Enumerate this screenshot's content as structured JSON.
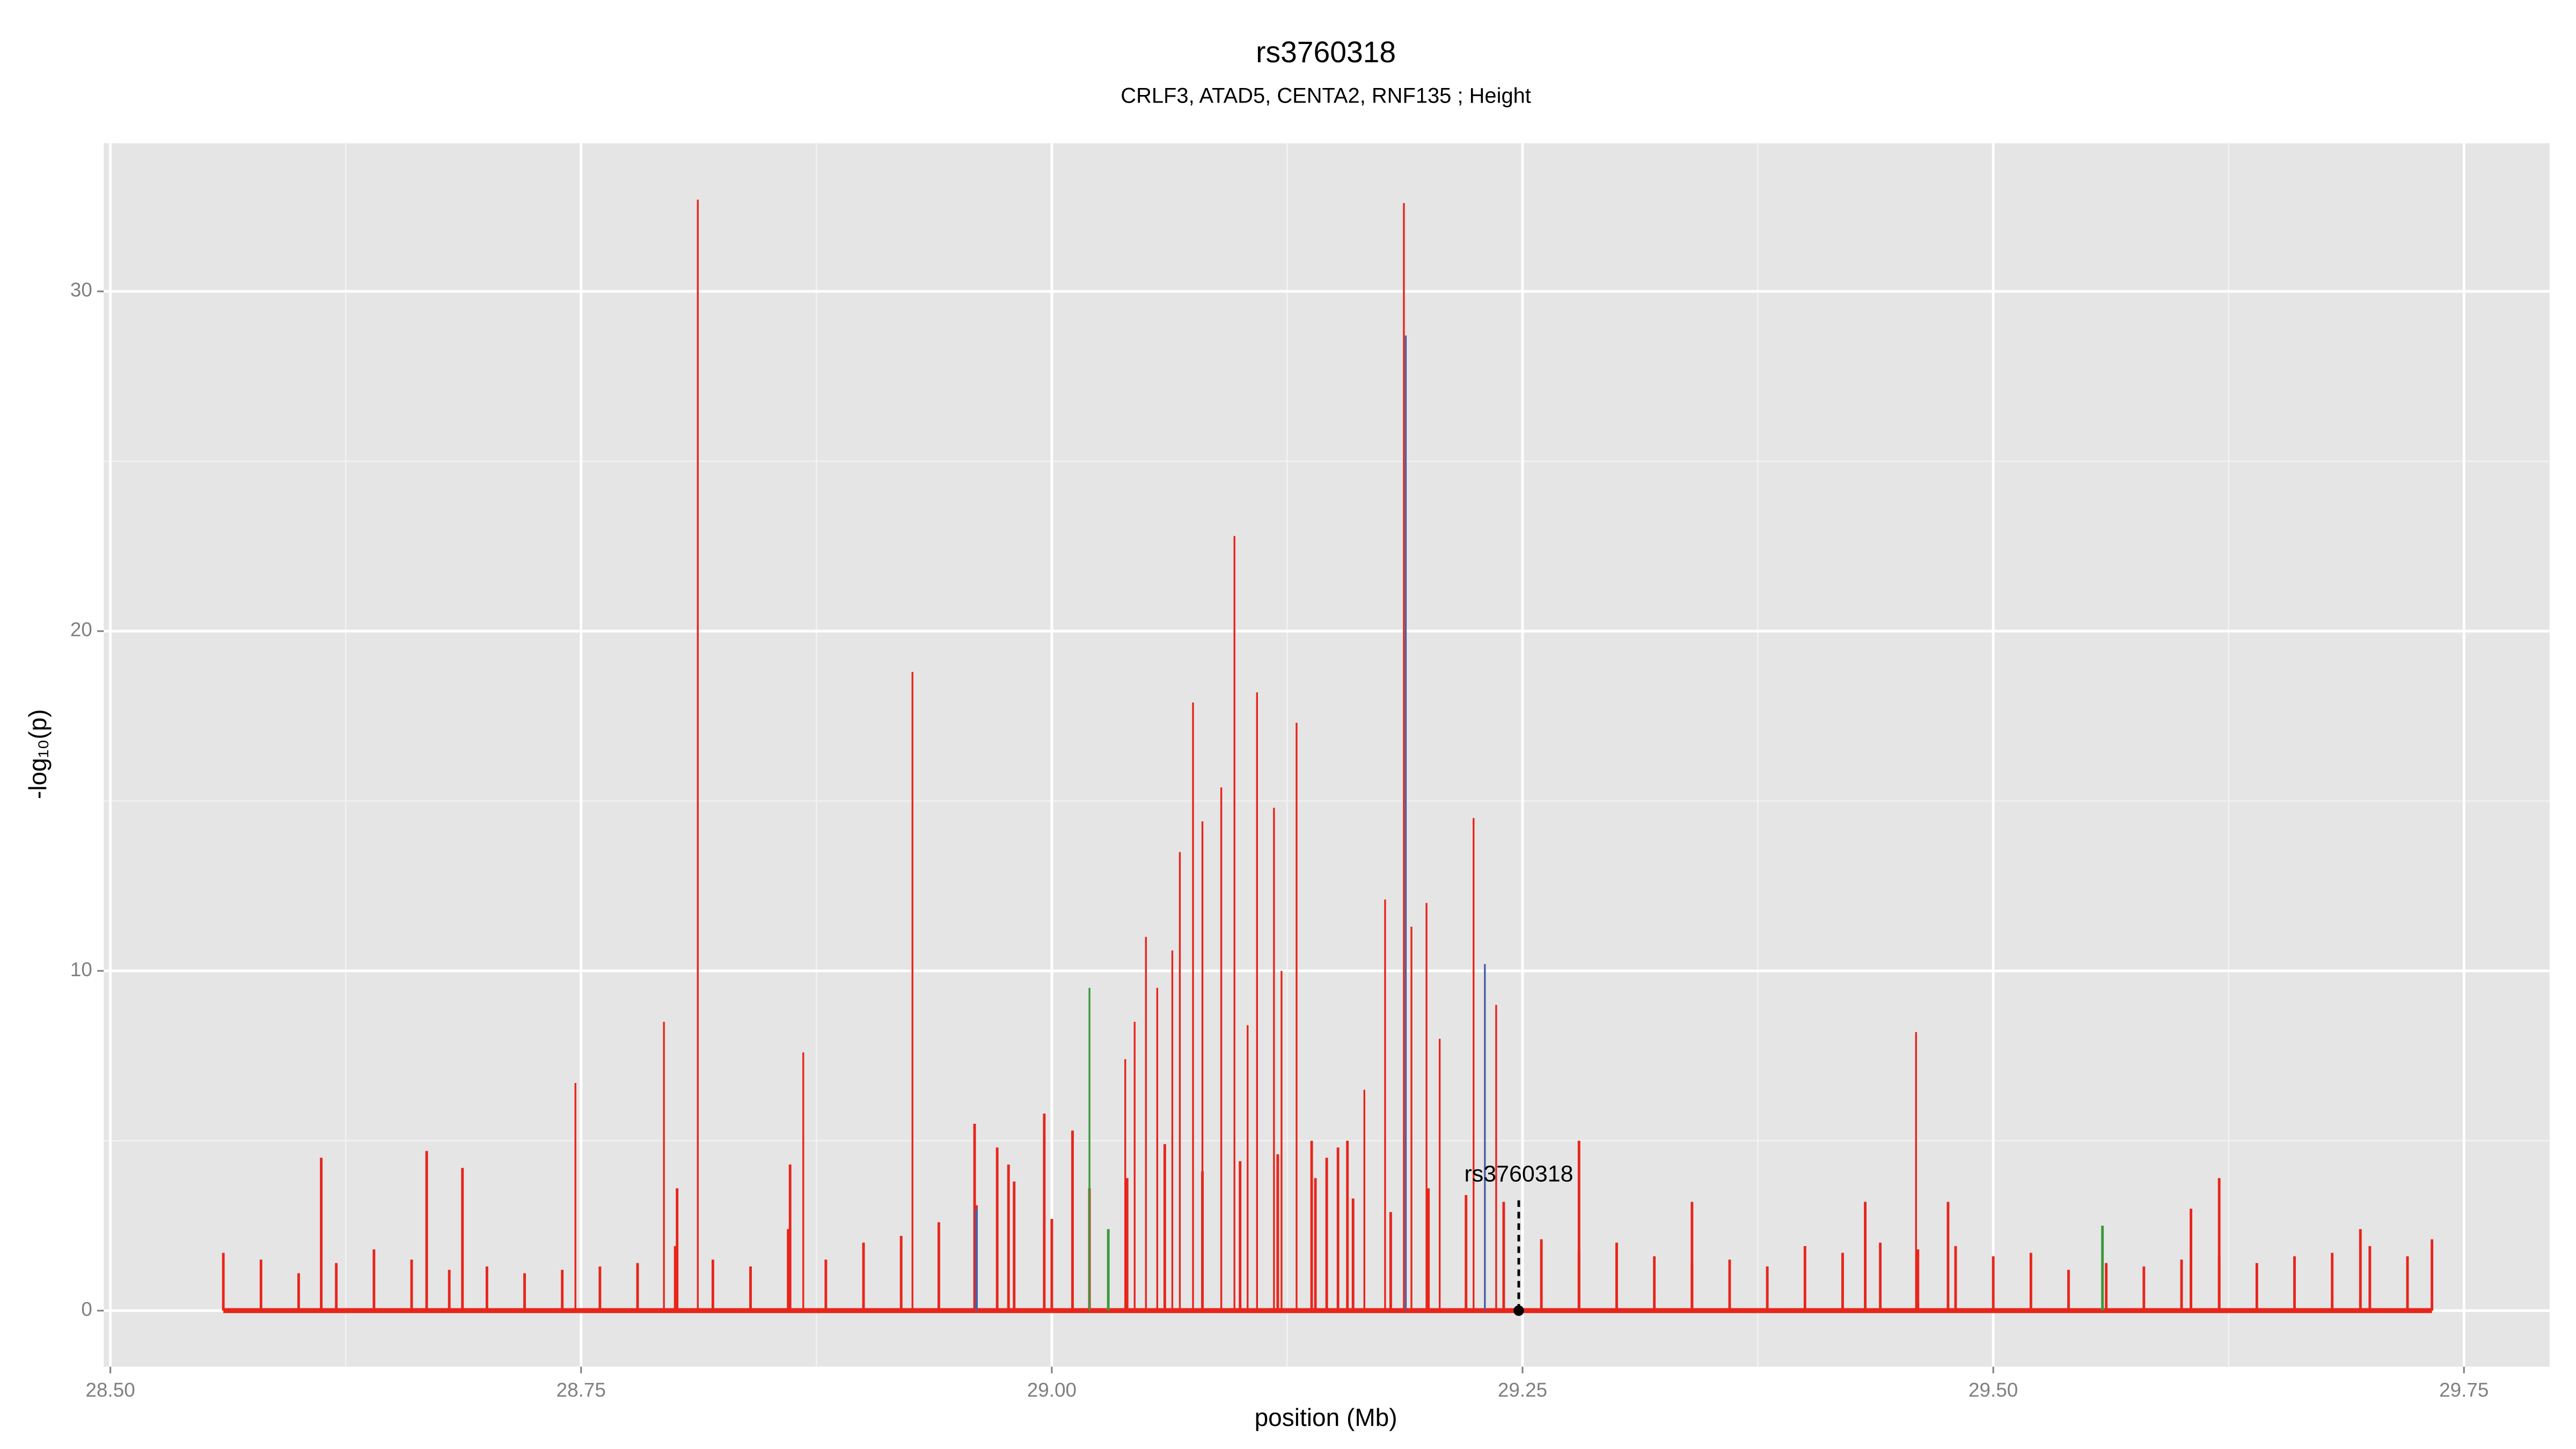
{
  "chart_data": {
    "type": "spike",
    "title": "rs3760318",
    "subtitle": "CRLF3, ATAD5, CENTA2, RNF135 ; Height",
    "xlabel": "position (Mb)",
    "ylabel": "-log₁₀(p)",
    "xlim": [
      28.4965,
      29.7955
    ],
    "ylim": [
      -1.65,
      34.36
    ],
    "xticks": [
      {
        "value": 28.5,
        "label": "28.50"
      },
      {
        "value": 28.75,
        "label": "28.75"
      },
      {
        "value": 29.0,
        "label": "29.00"
      },
      {
        "value": 29.25,
        "label": "29.25"
      },
      {
        "value": 29.5,
        "label": "29.50"
      },
      {
        "value": 29.75,
        "label": "29.75"
      }
    ],
    "yticks": [
      0,
      10,
      20,
      30
    ],
    "xminor": [
      28.625,
      28.875,
      29.125,
      29.375,
      29.625
    ],
    "yminor": [
      5,
      15,
      25
    ],
    "grid": true,
    "series": [
      {
        "color": "#e8251b",
        "x": [
          28.612,
          28.668,
          28.687,
          28.747,
          28.794,
          28.801,
          28.812,
          28.868,
          28.861,
          28.926,
          28.959,
          28.971,
          28.977,
          28.996,
          29.011,
          29.039,
          29.044,
          29.05,
          29.056,
          29.064,
          29.068,
          29.075,
          29.08,
          29.09,
          29.097,
          29.104,
          29.109,
          29.118,
          29.122,
          29.13,
          29.138,
          29.146,
          29.152,
          29.157,
          29.166,
          29.177,
          29.187,
          29.191,
          29.199,
          29.206,
          29.224,
          29.236,
          29.28,
          29.34,
          29.432,
          29.459,
          29.476,
          29.605,
          29.62,
          29.695,
          29.733,
          28.56,
          28.58,
          28.6,
          28.62,
          28.64,
          28.66,
          28.68,
          28.7,
          28.72,
          28.74,
          28.76,
          28.78,
          28.8,
          28.82,
          28.84,
          28.86,
          28.88,
          28.9,
          28.92,
          28.94,
          28.96,
          28.98,
          29.0,
          29.02,
          29.04,
          29.06,
          29.08,
          29.1,
          29.12,
          29.14,
          29.16,
          29.18,
          29.2,
          29.22,
          29.24,
          29.26,
          29.28,
          29.3,
          29.32,
          29.34,
          29.36,
          29.38,
          29.4,
          29.42,
          29.44,
          29.46,
          29.48,
          29.5,
          29.52,
          29.54,
          29.56,
          29.58,
          29.6,
          29.62,
          29.64,
          29.66,
          29.68,
          29.7,
          29.72
        ],
        "values": [
          4.5,
          4.7,
          4.2,
          6.7,
          8.5,
          3.6,
          32.7,
          7.6,
          4.3,
          18.8,
          5.5,
          4.8,
          4.3,
          5.8,
          5.3,
          7.4,
          8.5,
          11.0,
          9.5,
          10.6,
          13.5,
          17.9,
          14.4,
          15.4,
          22.8,
          8.4,
          18.2,
          14.8,
          10.0,
          17.3,
          5.0,
          4.5,
          4.8,
          5.0,
          6.5,
          12.1,
          32.6,
          11.3,
          12.0,
          8.0,
          14.5,
          9.0,
          5.0,
          3.2,
          3.2,
          8.2,
          3.2,
          3.0,
          3.9,
          2.4,
          2.1,
          1.7,
          1.5,
          1.1,
          1.4,
          1.8,
          1.5,
          1.2,
          1.3,
          1.1,
          1.2,
          1.3,
          1.4,
          1.9,
          1.5,
          1.3,
          2.4,
          1.5,
          2.0,
          2.2,
          2.6,
          3.1,
          3.8,
          2.7,
          3.6,
          3.9,
          4.9,
          4.1,
          4.4,
          4.6,
          3.9,
          3.3,
          2.9,
          3.6,
          3.4,
          3.2,
          2.1,
          1.7,
          2.0,
          1.6,
          1.4,
          1.5,
          1.3,
          1.9,
          1.7,
          2.0,
          1.8,
          1.9,
          1.6,
          1.7,
          1.2,
          1.4,
          1.3,
          1.5,
          1.6,
          1.4,
          1.6,
          1.7,
          1.9,
          1.6
        ]
      },
      {
        "color": "#4a5fa8",
        "x": [
          29.23,
          29.188,
          28.96
        ],
        "values": [
          10.2,
          28.7,
          3.0
        ]
      },
      {
        "color": "#3a9a3a",
        "x": [
          29.02,
          29.558,
          29.03
        ],
        "values": [
          9.5,
          2.5,
          2.4
        ]
      }
    ],
    "annotation": {
      "label": "rs3760318",
      "x": 29.248,
      "y": 0,
      "line_top": 3.3
    }
  }
}
